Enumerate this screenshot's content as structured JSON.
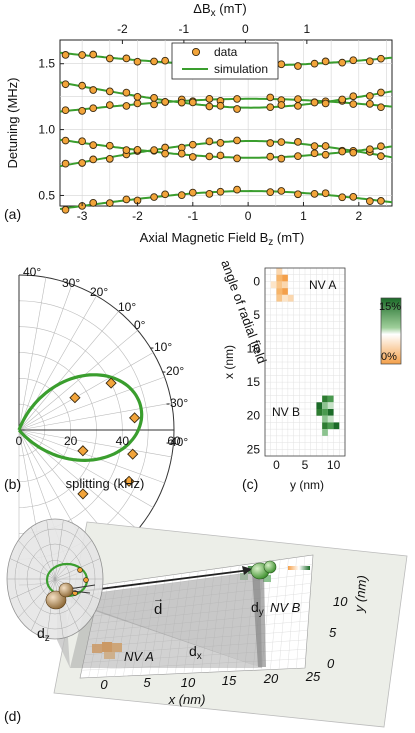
{
  "panel_a": {
    "label": "(a)",
    "top_axis_label": "ΔB",
    "top_axis_label_sub": "x",
    "top_axis_unit": " (mT)",
    "top_ticks": [
      "-2",
      "-1",
      "0",
      "1"
    ],
    "x_label": "Axial Magnetic Field B",
    "x_label_sub": "z",
    "x_unit": " (mT)",
    "y_label": "Detuning (MHz)",
    "legend_data": "data",
    "legend_sim": "simulation"
  },
  "panel_b": {
    "label": "(b)",
    "x_label": "splitting (kHz)",
    "x_ticks": [
      "0",
      "20",
      "40",
      "60"
    ],
    "angle_title": "angle of radial field",
    "angle_labels": [
      "40°",
      "30°",
      "20°",
      "10°",
      "0°",
      "-10°",
      "-20°",
      "-30°",
      "-40°"
    ]
  },
  "panel_c": {
    "label": "(c)",
    "x_label": "y (nm)",
    "y_label": "x (nm)",
    "x_ticks": [
      "0",
      "5",
      "10"
    ],
    "y_ticks": [
      "0",
      "5",
      "10",
      "15",
      "20",
      "25"
    ],
    "nv_a": "NV A",
    "nv_b": "NV B",
    "colorbar_top": "15%",
    "colorbar_bottom": "0%"
  },
  "panel_d": {
    "label": "(d)",
    "x_label": "x (nm)",
    "y_label": "y (nm)",
    "x_ticks": [
      "0",
      "5",
      "10",
      "15",
      "20",
      "25"
    ],
    "y_ticks": [
      "0",
      "5",
      "10"
    ],
    "nv_a": "NV A",
    "nv_b": "NV B",
    "vec": "d",
    "d_x": "d",
    "d_x_sub": "x",
    "d_y": "d",
    "d_y_sub": "y",
    "d_z": "d",
    "d_z_sub": "z"
  },
  "colors": {
    "simulation": "#3a9e2e",
    "data_marker": "#f2a43a",
    "nv_a": "#f4a04a",
    "nv_b": "#2e7d32"
  },
  "chart_data": [
    {
      "type": "scatter",
      "panel": "a",
      "xlabel": "Axial Magnetic Field Bz (mT)",
      "ylabel": "Detuning (MHz)",
      "x_ticks": [
        -3,
        -2,
        -1,
        0,
        1,
        2
      ],
      "y_ticks": [
        0.5,
        1.0,
        1.5
      ],
      "xlim": [
        -3.4,
        2.6
      ],
      "ylim": [
        0.42,
        1.68
      ],
      "top_axis": {
        "label": "ΔBx (mT)",
        "ticks": [
          -2,
          -1,
          0,
          1
        ]
      },
      "grid": true,
      "legend": "top-center",
      "series": [
        {
          "name": "data",
          "kind": "markers",
          "x_samples": [
            -3.3,
            -3.0,
            -2.8,
            -2.5,
            -2.2,
            -2.0,
            -1.7,
            -1.5,
            -1.2,
            -1.0,
            -0.7,
            -0.5,
            -0.2,
            0.4,
            0.6,
            0.9,
            1.2,
            1.4,
            1.7,
            1.9,
            2.2,
            2.4
          ]
        },
        {
          "name": "simulation",
          "kind": "curves",
          "curves": [
            {
              "center": 1.36,
              "amplitude": 0.16,
              "sign": 1,
              "width": 3.0
            },
            {
              "center": 1.36,
              "amplitude": 0.16,
              "sign": -1,
              "width": 3.0
            },
            {
              "center": 1.04,
              "amplitude": 0.22,
              "sign": 1,
              "width": 2.6
            },
            {
              "center": 1.04,
              "amplitude": 0.22,
              "sign": -1,
              "width": 2.6
            },
            {
              "center": 0.66,
              "amplitude": 0.2,
              "sign": 1,
              "width": 3.0
            },
            {
              "center": 0.66,
              "amplitude": 0.2,
              "sign": -1,
              "width": 3.0
            }
          ]
        }
      ]
    },
    {
      "type": "scatter",
      "panel": "b",
      "xlabel": "splitting (kHz)",
      "radial_ticks": [
        0,
        20,
        40,
        60
      ],
      "angle_range_deg": [
        -40,
        40
      ],
      "data_points": [
        {
          "angle_deg": 27,
          "splitting_khz": 40
        },
        {
          "angle_deg": 30,
          "splitting_khz": 25
        },
        {
          "angle_deg": 6,
          "splitting_khz": 45
        },
        {
          "angle_deg": -12,
          "splitting_khz": 45
        },
        {
          "angle_deg": -25,
          "splitting_khz": 47
        },
        {
          "angle_deg": -45,
          "splitting_khz": 35
        },
        {
          "angle_deg": -18,
          "splitting_khz": 26
        }
      ]
    },
    {
      "type": "heatmap",
      "panel": "c",
      "xlabel": "y (nm)",
      "ylabel": "x (nm)",
      "x_range": [
        -2,
        12
      ],
      "y_range": [
        -2,
        26
      ],
      "colorbar": [
        "0%",
        "15%"
      ],
      "nv_a_cells": [
        [
          0,
          -2
        ],
        [
          0,
          -1
        ],
        [
          1,
          -1
        ],
        [
          0,
          0
        ],
        [
          -1,
          0
        ],
        [
          1,
          0
        ],
        [
          0,
          1
        ],
        [
          1,
          1
        ],
        [
          0,
          2
        ],
        [
          1,
          2
        ],
        [
          2,
          2
        ]
      ],
      "nv_b_cells": [
        [
          8,
          17
        ],
        [
          9,
          17
        ],
        [
          7,
          18
        ],
        [
          8,
          18
        ],
        [
          9,
          18
        ],
        [
          7,
          19
        ],
        [
          8,
          19
        ],
        [
          9,
          19
        ],
        [
          8,
          20
        ],
        [
          9,
          20
        ],
        [
          8,
          21
        ],
        [
          9,
          21
        ],
        [
          10,
          21
        ],
        [
          8,
          22
        ]
      ]
    }
  ]
}
